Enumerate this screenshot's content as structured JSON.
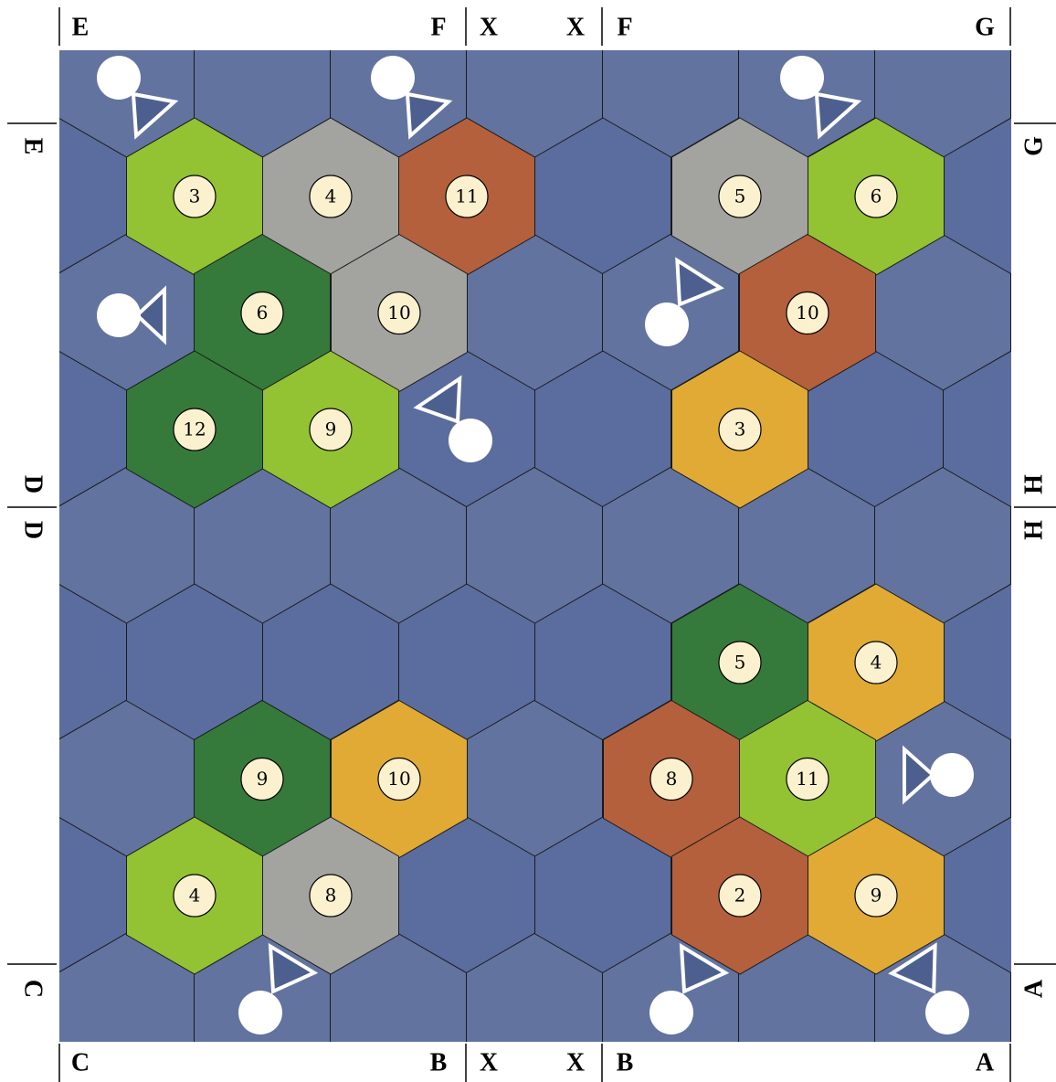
{
  "edges": {
    "top": [
      "E",
      "F",
      "X",
      "X",
      "F",
      "G"
    ],
    "bottom": [
      "C",
      "B",
      "X",
      "X",
      "B",
      "A"
    ],
    "left": [
      "E",
      "D",
      "D",
      "C"
    ],
    "right": [
      "G",
      "H",
      "H",
      "A"
    ]
  },
  "tiles": [
    {
      "terrain": "pasture",
      "number": 3
    },
    {
      "terrain": "mountains",
      "number": 4
    },
    {
      "terrain": "hills",
      "number": 11
    },
    {
      "terrain": "mountains",
      "number": 5
    },
    {
      "terrain": "pasture",
      "number": 6
    },
    {
      "terrain": "forest",
      "number": 6
    },
    {
      "terrain": "mountains",
      "number": 10
    },
    {
      "terrain": "hills",
      "number": 10
    },
    {
      "terrain": "forest",
      "number": 12
    },
    {
      "terrain": "pasture",
      "number": 9
    },
    {
      "terrain": "fields",
      "number": 3
    },
    {
      "terrain": "forest",
      "number": 5
    },
    {
      "terrain": "fields",
      "number": 4
    },
    {
      "terrain": "forest",
      "number": 9
    },
    {
      "terrain": "fields",
      "number": 10
    },
    {
      "terrain": "hills",
      "number": 8
    },
    {
      "terrain": "pasture",
      "number": 11
    },
    {
      "terrain": "pasture",
      "number": 4
    },
    {
      "terrain": "mountains",
      "number": 8
    },
    {
      "terrain": "hills",
      "number": 2
    },
    {
      "terrain": "fields",
      "number": 9
    }
  ]
}
